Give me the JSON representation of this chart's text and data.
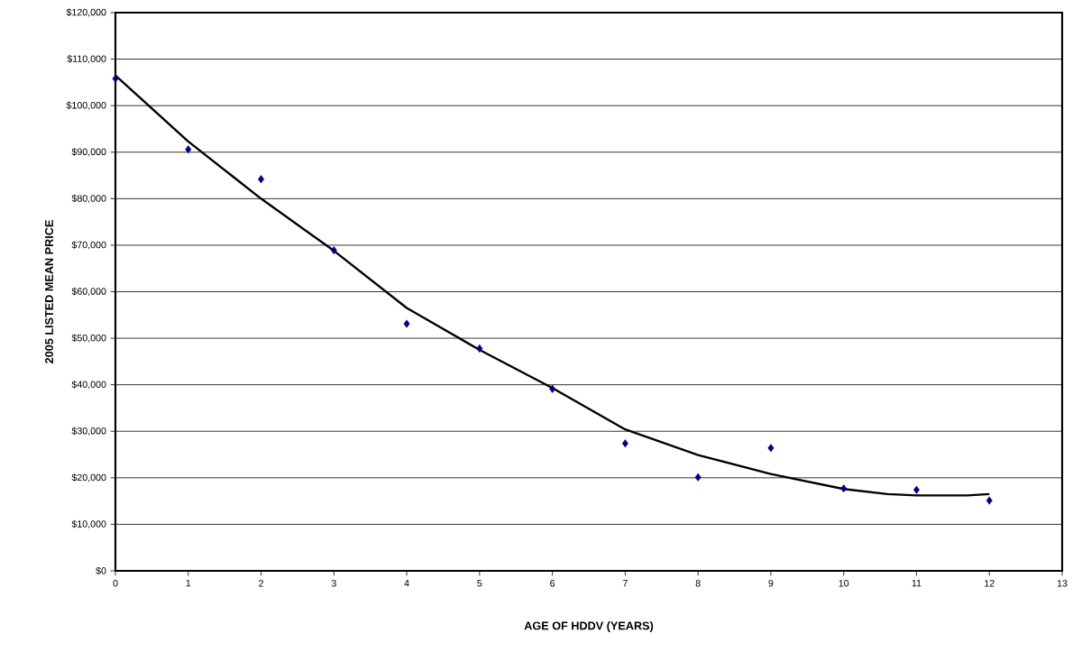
{
  "chart_data": {
    "type": "scatter",
    "xlabel": "AGE OF HDDV (YEARS)",
    "ylabel": "2005 LISTED MEAN PRICE",
    "x": [
      0,
      1,
      2,
      3,
      4,
      5,
      6,
      7,
      8,
      9,
      10,
      11,
      12
    ],
    "series": [
      {
        "color": "#000080",
        "marker": "diamond",
        "values": [
          105800,
          90600,
          84200,
          68900,
          53100,
          47800,
          39100,
          27400,
          20100,
          26400,
          17700,
          17400,
          15100
        ]
      },
      {
        "type": "line",
        "color": "#000000",
        "marker": "none",
        "line_style": "solid",
        "x": [
          0,
          1,
          2,
          3,
          4,
          5,
          6,
          7,
          8,
          9,
          10,
          10.6,
          11,
          11.7,
          12
        ],
        "values": [
          106500,
          92300,
          80000,
          68800,
          56500,
          47500,
          39300,
          30400,
          24900,
          20800,
          17600,
          16500,
          16200,
          16200,
          16500
        ]
      }
    ],
    "xlim": [
      0,
      13
    ],
    "xticks": [
      0,
      1,
      2,
      3,
      4,
      5,
      6,
      7,
      8,
      9,
      10,
      11,
      12,
      13
    ],
    "ylim": [
      0,
      120000
    ],
    "yticks": [
      {
        "value": 0,
        "label": "$0"
      },
      {
        "value": 10000,
        "label": "$10,000"
      },
      {
        "value": 20000,
        "label": "$20,000"
      },
      {
        "value": 30000,
        "label": "$30,000"
      },
      {
        "value": 40000,
        "label": "$40,000"
      },
      {
        "value": 50000,
        "label": "$50,000"
      },
      {
        "value": 60000,
        "label": "$60,000"
      },
      {
        "value": 70000,
        "label": "$70,000"
      },
      {
        "value": 80000,
        "label": "$80,000"
      },
      {
        "value": 90000,
        "label": "$90,000"
      },
      {
        "value": 100000,
        "label": "$100,000"
      },
      {
        "value": 110000,
        "label": "$110,000"
      },
      {
        "value": 120000,
        "label": "$120,000"
      }
    ],
    "grid": "y",
    "legend": false
  }
}
